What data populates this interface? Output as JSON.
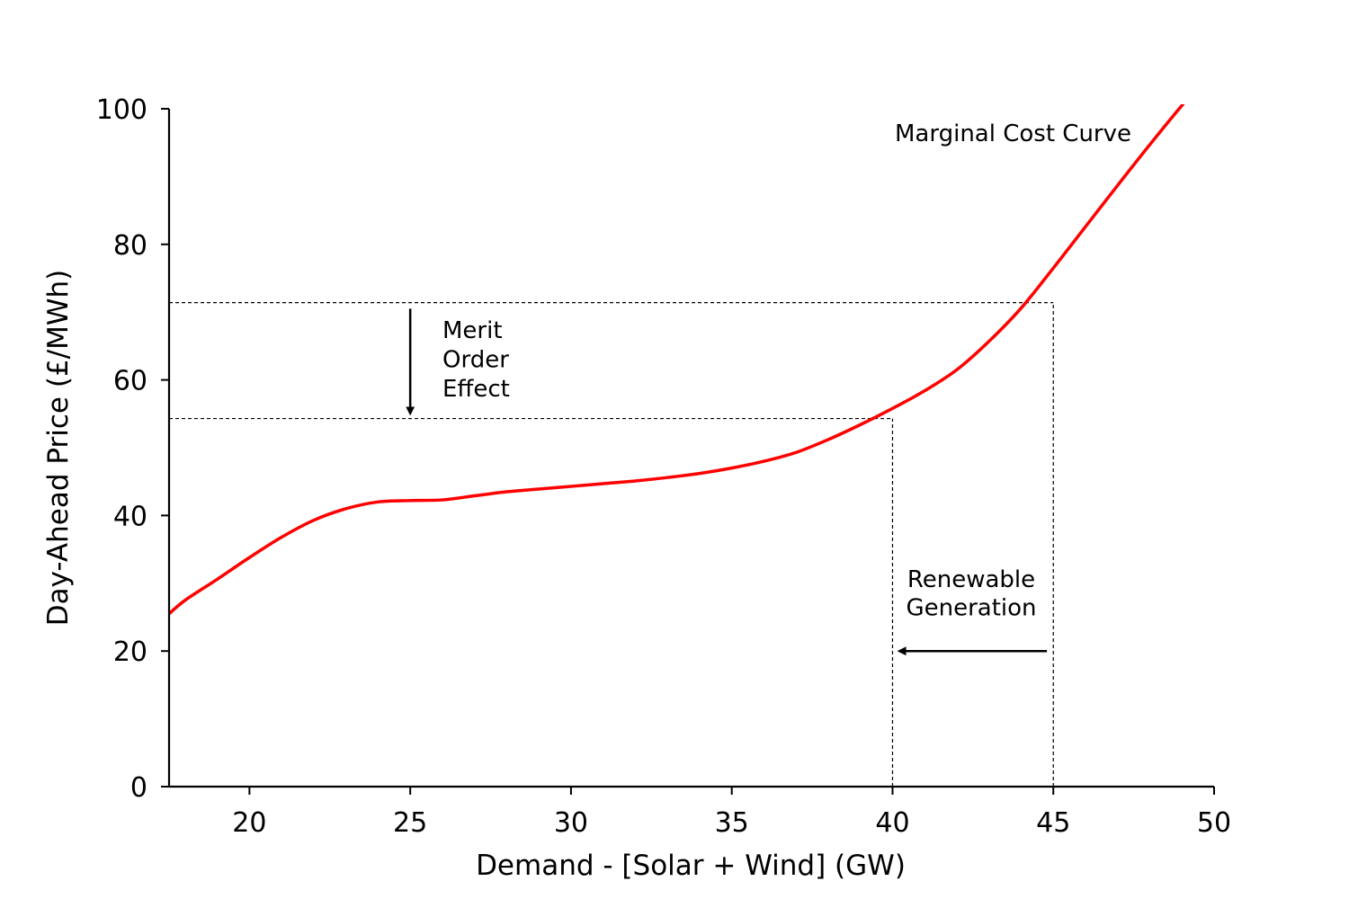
{
  "chart_data": {
    "type": "line",
    "title": "",
    "xlabel": "Demand - [Solar + Wind] (GW)",
    "ylabel": "Day-Ahead Price (£/MWh)",
    "xlim": [
      17.5,
      50
    ],
    "ylim": [
      0,
      100
    ],
    "xticks": [
      20,
      25,
      30,
      35,
      40,
      45,
      50
    ],
    "yticks": [
      0,
      20,
      40,
      60,
      80,
      100
    ],
    "grid": false,
    "series": [
      {
        "name": "Marginal Cost Curve",
        "color": "#ff0000",
        "x": [
          17.5,
          18,
          19,
          20,
          21,
          22,
          23,
          24,
          25,
          26,
          27,
          28,
          29,
          30,
          31,
          32,
          33,
          34,
          35,
          36,
          37,
          38,
          39,
          40,
          41,
          42,
          43,
          44,
          45,
          46,
          47,
          48,
          49,
          50
        ],
        "y": [
          25.5,
          27.5,
          30.6,
          33.8,
          36.8,
          39.3,
          41.0,
          42.0,
          42.2,
          42.3,
          42.9,
          43.5,
          43.9,
          44.3,
          44.7,
          45.1,
          45.6,
          46.2,
          47.0,
          48.0,
          49.3,
          51.2,
          53.4,
          55.8,
          58.4,
          61.5,
          65.7,
          70.6,
          76.5,
          82.6,
          88.7,
          94.7,
          100.5,
          106.0
        ]
      }
    ],
    "annotations": [
      {
        "id": "curve-name",
        "text": "Marginal Cost Curve"
      },
      {
        "id": "merit-order",
        "text": "Merit Order Effect",
        "lines": [
          "Merit",
          "Order",
          "Effect"
        ]
      },
      {
        "id": "renewable",
        "text": "Renewable Generation",
        "lines": [
          "Renewable",
          "Generation"
        ]
      }
    ],
    "reference_lines": [
      {
        "type": "hline",
        "y": 71.4,
        "from_x": 17.5,
        "to_x": 45
      },
      {
        "type": "hline",
        "y": 54.3,
        "from_x": 17.5,
        "to_x": 40
      },
      {
        "type": "vline",
        "x": 40,
        "from_y": 0,
        "to_y": 54.3
      },
      {
        "type": "vline",
        "x": 45,
        "from_y": 0,
        "to_y": 71.4
      }
    ],
    "arrows": [
      {
        "id": "merit-arrow",
        "from": [
          25,
          70.5
        ],
        "to": [
          25,
          55
        ]
      },
      {
        "id": "renewable-arrow",
        "from": [
          44.8,
          20
        ],
        "to": [
          40.2,
          20
        ]
      }
    ]
  }
}
